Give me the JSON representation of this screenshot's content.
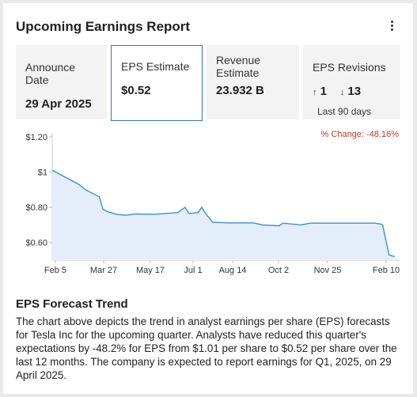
{
  "header": {
    "title": "Upcoming Earnings Report",
    "menu_icon": "vertical-dots-icon"
  },
  "tiles": {
    "announce": {
      "label": "Announce Date",
      "value": "29 Apr 2025"
    },
    "eps": {
      "label": "EPS Estimate",
      "value": "$0.52"
    },
    "revenue": {
      "label_line1": "Revenue",
      "label_line2": "Estimate",
      "value": "23.932 B"
    },
    "revisions": {
      "label": "EPS Revisions",
      "up_icon": "arrow-up-icon",
      "up_value": "1",
      "down_icon": "arrow-down-icon",
      "down_value": "13",
      "period": "Last 90 days"
    }
  },
  "chart": {
    "pct_change": "% Change: -48.16%"
  },
  "chart_data": {
    "type": "area",
    "title": "",
    "xlabel": "",
    "ylabel": "",
    "ylim": [
      0.5,
      1.2
    ],
    "yticks": [
      "$1.20",
      "$1",
      "$0.80",
      "$0.60"
    ],
    "ytick_values": [
      1.2,
      1.0,
      0.8,
      0.6
    ],
    "xtick_labels": [
      "Feb 5",
      "Mar 27",
      "May 17",
      "Jul 1",
      "Aug 14",
      "Oct 2",
      "Nov 25",
      "Feb 10"
    ],
    "grid": false,
    "series": [
      {
        "x": [
          "2024-02-05",
          "2024-03-05",
          "2024-03-12",
          "2024-03-27",
          "2024-03-31",
          "2024-04-05",
          "2024-04-15",
          "2024-04-25",
          "2024-05-05",
          "2024-05-25",
          "2024-06-20",
          "2024-06-28",
          "2024-07-02",
          "2024-07-12",
          "2024-07-16",
          "2024-07-20",
          "2024-07-28",
          "2024-08-14",
          "2024-09-10",
          "2024-09-20",
          "2024-10-08",
          "2024-10-12",
          "2024-11-01",
          "2024-11-10",
          "2024-12-20",
          "2025-01-20",
          "2025-01-26",
          "2025-01-28",
          "2025-02-04",
          "2025-02-10"
        ],
        "y": [
          1.01,
          0.93,
          0.9,
          0.86,
          0.79,
          0.775,
          0.76,
          0.755,
          0.762,
          0.76,
          0.77,
          0.8,
          0.765,
          0.77,
          0.8,
          0.765,
          0.715,
          0.712,
          0.712,
          0.7,
          0.695,
          0.71,
          0.7,
          0.71,
          0.71,
          0.71,
          0.705,
          0.7,
          0.53,
          0.52
        ],
        "color": "#3a8fd6",
        "fill": "#e3eefa"
      }
    ],
    "x_range": [
      "2024-02-05",
      "2025-02-12"
    ]
  },
  "section": {
    "title": "EPS Forecast Trend",
    "body": "The chart above depicts the trend in analyst earnings per share (EPS) forecasts for Tesla Inc for the upcoming quarter. Analysts have reduced this quarter's expectations by -48.2% for EPS from $1.01 per share to $0.52 per share over the last 12 months. The company is expected to report earnings for Q1, 2025, on 29 April 2025."
  }
}
